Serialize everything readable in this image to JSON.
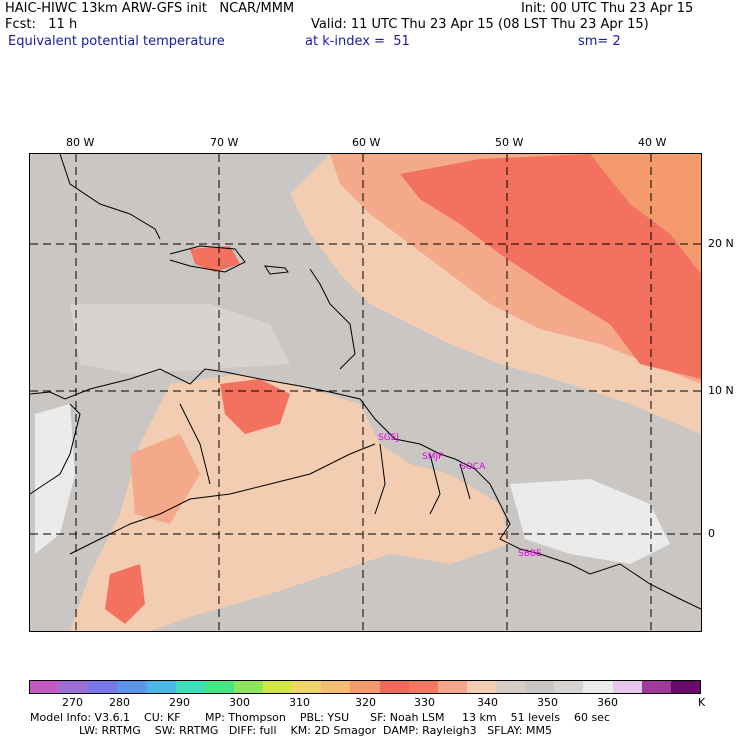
{
  "header": {
    "line1_left": "HAIC-HIWC 13km ARW-GFS init   NCAR/MMM",
    "line1_right": "Init: 00 UTC Thu 23 Apr 15",
    "line2_left": "Fcst:   11 h",
    "line2_right": "Valid: 11 UTC Thu 23 Apr 15 (08 LST Thu 23 Apr 15)",
    "line3_field": "Equivalent potential temperature",
    "line3_level": "at k-index =  51",
    "line3_smooth": "sm= 2"
  },
  "map": {
    "lon_labels": [
      "80 W",
      "70 W",
      "60 W",
      "50 W",
      "40 W"
    ],
    "lat_labels": [
      "20 N",
      "10 N",
      "0"
    ],
    "cities": [
      "SGEJ",
      "SMJP",
      "SOCA",
      "SBBE"
    ]
  },
  "colorbar": {
    "colors": [
      "#c45ac4",
      "#9b6fd6",
      "#7a78e8",
      "#5a96ea",
      "#4ab8e6",
      "#3ce0b8",
      "#46e682",
      "#8ee65a",
      "#d2e64c",
      "#eed66a",
      "#f6bc74",
      "#f49a6c",
      "#f06a5c",
      "#f4785e",
      "#f6a688",
      "#f4ccb0",
      "#d8ccc6",
      "#c9c6c3",
      "#d6d3d0",
      "#ebebeb",
      "#e6c6ea",
      "#a03a9a",
      "#6a0a6a"
    ],
    "ticks": [
      "270",
      "280",
      "290",
      "300",
      "310",
      "320",
      "330",
      "340",
      "350",
      "360",
      "K"
    ]
  },
  "footer": {
    "line1": "Model Info: V3.6.1    CU: KF       MP: Thompson    PBL: YSU      SF: Noah LSM     13 km    51 levels    60 sec",
    "line2": "              LW: RRTMG    SW: RRTMG   DIFF: full    KM: 2D Smagor  DAMP: Rayleigh3   SFLAY: MM5"
  }
}
